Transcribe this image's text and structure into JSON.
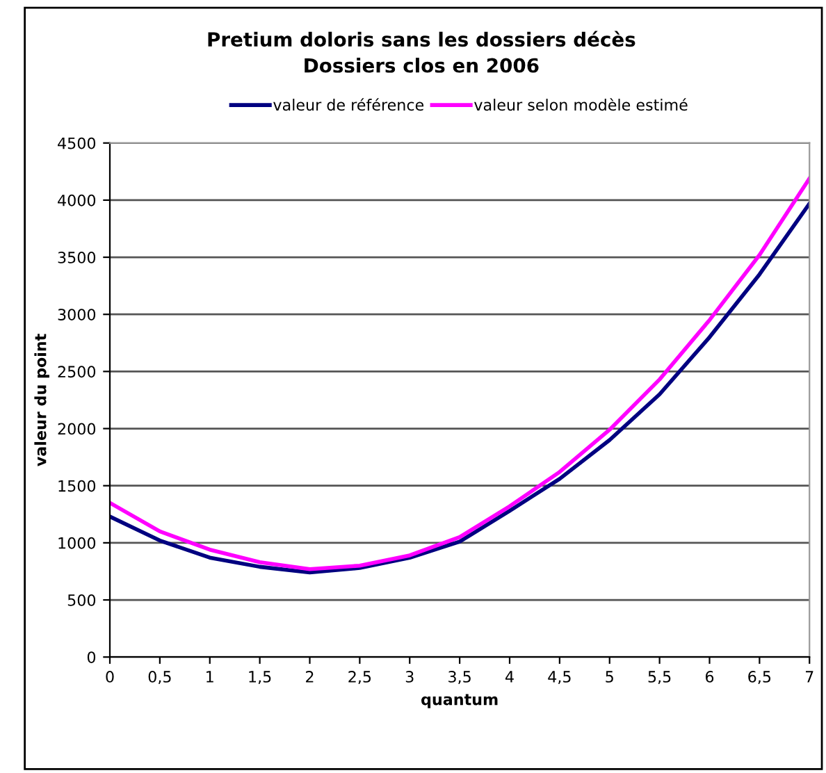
{
  "chart_data": {
    "type": "line",
    "title": "Pretium doloris sans les dossiers décès\nDossiers clos en 2006",
    "xlabel": "quantum",
    "ylabel": "valeur du point",
    "x": [
      0,
      0.5,
      1,
      1.5,
      2,
      2.5,
      3,
      3.5,
      4,
      4.5,
      5,
      5.5,
      6,
      6.5,
      7
    ],
    "series": [
      {
        "name": "valeur de référence",
        "color": "#000080",
        "values": [
          1230,
          1020,
          870,
          790,
          740,
          780,
          870,
          1010,
          1280,
          1560,
          1900,
          2300,
          2800,
          3350,
          3970
        ]
      },
      {
        "name": "valeur selon modèle estimé",
        "color": "#ff00ff",
        "values": [
          1350,
          1100,
          940,
          830,
          770,
          800,
          890,
          1050,
          1320,
          1620,
          1990,
          2430,
          2950,
          3520,
          4190
        ]
      }
    ],
    "xlim": [
      0,
      7
    ],
    "xticks": [
      0,
      {
        "value": 0.5,
        "label": "0,5"
      },
      1,
      {
        "value": 1.5,
        "label": "1,5"
      },
      2,
      {
        "value": 2.5,
        "label": "2,5"
      },
      3,
      {
        "value": 3.5,
        "label": "3,5"
      },
      4,
      {
        "value": 4.5,
        "label": "4,5"
      },
      5,
      {
        "value": 5.5,
        "label": "5,5"
      },
      6,
      {
        "value": 6.5,
        "label": "6,5"
      },
      7
    ],
    "ylim": [
      0,
      4500
    ],
    "yticks": [
      0,
      500,
      1000,
      1500,
      2000,
      2500,
      3000,
      3500,
      4000,
      4500
    ],
    "grid": "y",
    "legend": "top",
    "marker": "none",
    "line_style": "solid"
  }
}
